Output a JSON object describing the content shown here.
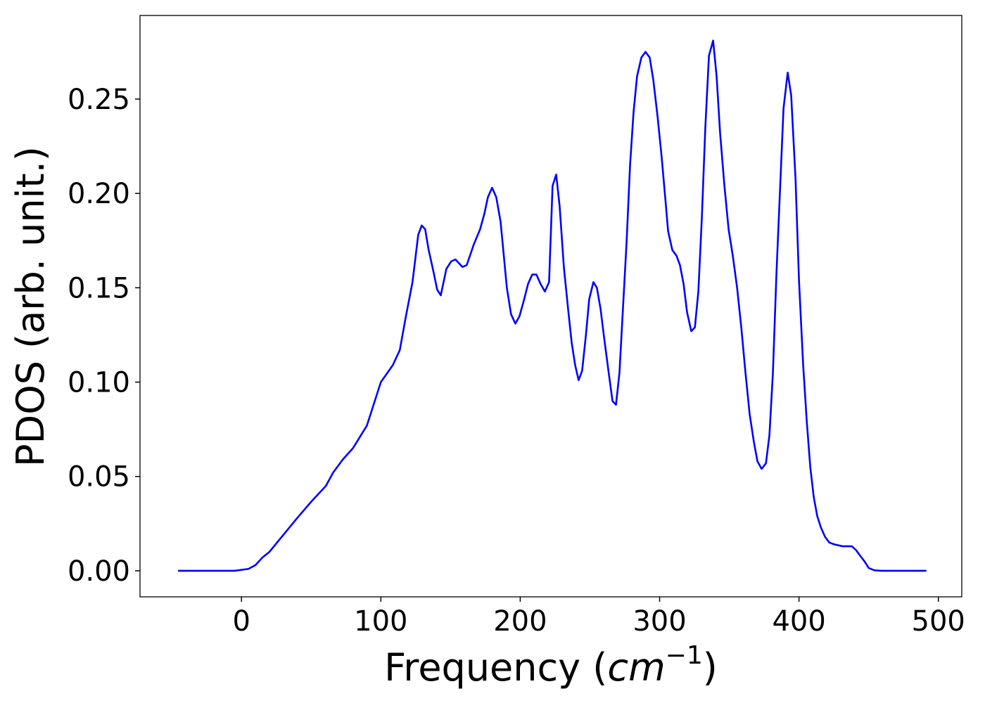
{
  "chart_data": {
    "type": "line",
    "x_label": [
      "Frequency (",
      "cm",
      "−1",
      ")"
    ],
    "y_label": "PDOS (arb. unit.)",
    "xlim": [
      -72.8,
      516.8
    ],
    "ylim": [
      -0.0138,
      0.2943
    ],
    "xticks": [
      0,
      100,
      200,
      300,
      400,
      500
    ],
    "yticks": [
      {
        "value": 0,
        "label": "0.00"
      },
      0.05,
      {
        "value": 0.1,
        "label": "0.10"
      },
      0.15,
      {
        "value": 0.2,
        "label": "0.20"
      },
      0.25
    ],
    "grid": false,
    "series": [
      {
        "name": "PDOS",
        "color": "#0000ff",
        "x": [
          -45.5,
          -5,
          5,
          10,
          15,
          20,
          30,
          40,
          50.5,
          60.6,
          65.7,
          72.7,
          80,
          90,
          100,
          108.6,
          113.6,
          118,
          122.7,
          126.8,
          129.3,
          131.8,
          134.3,
          137.9,
          140.4,
          143,
          147,
          150.5,
          153.5,
          158.6,
          161.6,
          166.7,
          171.2,
          174.2,
          176.8,
          179.8,
          182.8,
          185.9,
          190.4,
          193.4,
          196.5,
          199.5,
          202.5,
          205.6,
          208.6,
          211.6,
          214.6,
          217.7,
          220.7,
          223.2,
          225.8,
          228.3,
          231.3,
          234.3,
          236.9,
          239.4,
          241.9,
          244.4,
          247,
          249.5,
          252.5,
          255,
          257.6,
          260.1,
          263.1,
          266.2,
          268.7,
          271.2,
          273.7,
          276.3,
          278.8,
          281.3,
          283.8,
          286.9,
          289.9,
          292.9,
          295.5,
          298.5,
          301.5,
          304,
          306.1,
          309.1,
          312.1,
          314.6,
          317.2,
          319.7,
          322.7,
          325.3,
          327.8,
          330.3,
          332.8,
          335.4,
          338.4,
          340.9,
          343.4,
          346.5,
          349.5,
          352.5,
          355.6,
          358.6,
          361.6,
          364.6,
          367.7,
          370.2,
          373.2,
          376.3,
          378.8,
          381.3,
          383.8,
          386.4,
          388.9,
          391.9,
          394.4,
          397.5,
          400,
          403,
          405.6,
          408.1,
          410.6,
          413.1,
          415.7,
          418.7,
          421.7,
          425.3,
          431.3,
          437.9,
          440.9,
          443.9,
          447,
          450,
          454,
          459,
          491.4
        ],
        "values": [
          0,
          0,
          0.001,
          0.003,
          0.007,
          0.01,
          0.019,
          0.028,
          0.037,
          0.045,
          0.052,
          0.059,
          0.065,
          0.077,
          0.1,
          0.109,
          0.117,
          0.135,
          0.153,
          0.178,
          0.183,
          0.181,
          0.17,
          0.158,
          0.149,
          0.146,
          0.16,
          0.164,
          0.165,
          0.161,
          0.162,
          0.173,
          0.181,
          0.189,
          0.198,
          0.203,
          0.198,
          0.185,
          0.15,
          0.136,
          0.131,
          0.135,
          0.143,
          0.152,
          0.157,
          0.157,
          0.152,
          0.148,
          0.153,
          0.204,
          0.21,
          0.193,
          0.161,
          0.139,
          0.121,
          0.109,
          0.101,
          0.106,
          0.124,
          0.144,
          0.153,
          0.15,
          0.139,
          0.124,
          0.107,
          0.09,
          0.088,
          0.105,
          0.139,
          0.174,
          0.215,
          0.243,
          0.262,
          0.272,
          0.275,
          0.272,
          0.26,
          0.241,
          0.219,
          0.198,
          0.18,
          0.17,
          0.167,
          0.162,
          0.152,
          0.137,
          0.127,
          0.129,
          0.148,
          0.187,
          0.235,
          0.273,
          0.281,
          0.262,
          0.232,
          0.204,
          0.181,
          0.167,
          0.15,
          0.129,
          0.105,
          0.083,
          0.068,
          0.058,
          0.054,
          0.057,
          0.072,
          0.105,
          0.157,
          0.202,
          0.245,
          0.264,
          0.252,
          0.208,
          0.154,
          0.109,
          0.079,
          0.055,
          0.039,
          0.029,
          0.023,
          0.018,
          0.015,
          0.014,
          0.013,
          0.013,
          0.011,
          0.008,
          0.005,
          0.0015,
          0.0003,
          0,
          0
        ]
      }
    ]
  }
}
